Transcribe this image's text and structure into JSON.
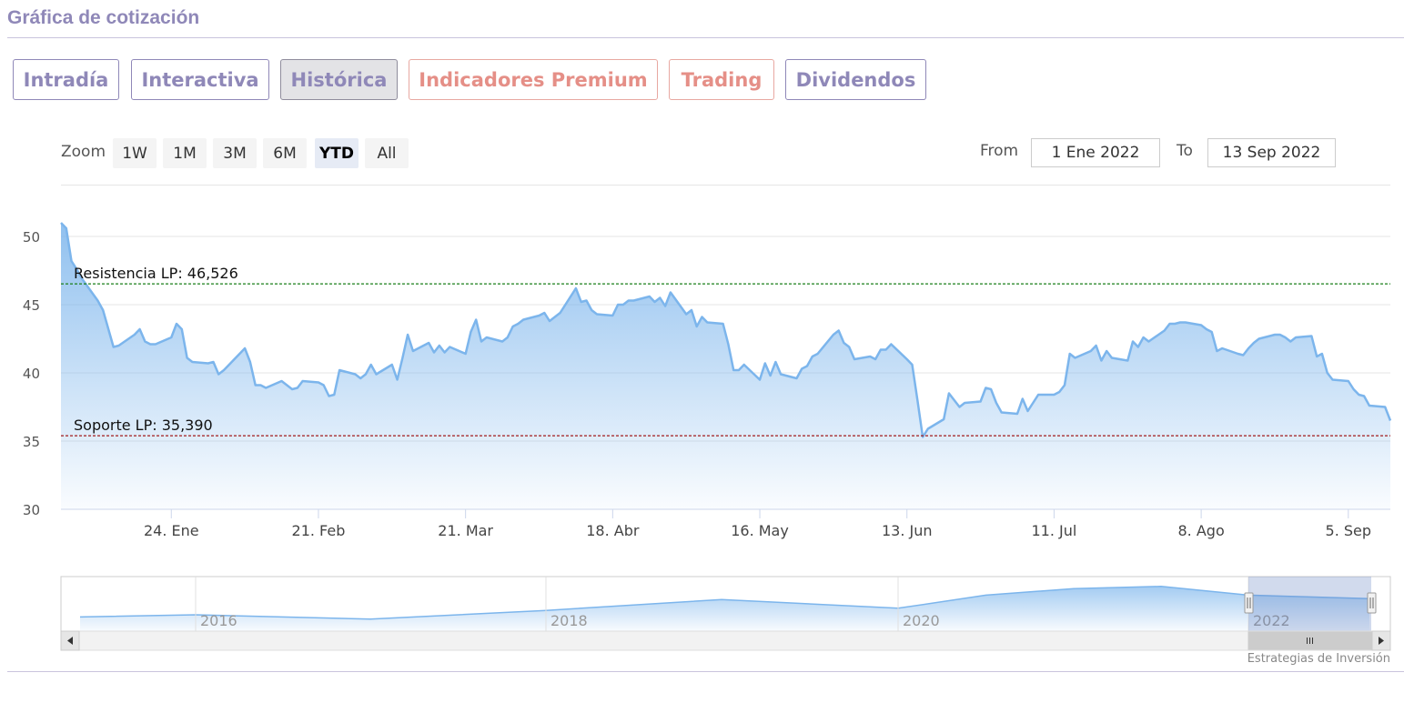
{
  "section": {
    "title": "Gráfica de cotización"
  },
  "tabs": [
    {
      "label": "Intradía",
      "style": "normal"
    },
    {
      "label": "Interactiva",
      "style": "normal"
    },
    {
      "label": "Histórica",
      "style": "active"
    },
    {
      "label": "Indicadores Premium",
      "style": "premium"
    },
    {
      "label": "Trading",
      "style": "premium"
    },
    {
      "label": "Dividendos",
      "style": "normal"
    }
  ],
  "zoom": {
    "label": "Zoom",
    "buttons": [
      "1W",
      "1M",
      "3M",
      "6M",
      "YTD",
      "All"
    ],
    "selected": "YTD"
  },
  "range": {
    "from_label": "From",
    "from_value": "1 Ene 2022",
    "to_label": "To",
    "to_value": "13 Sep 2022"
  },
  "colors": {
    "accent": "#8f88b8",
    "premium": "#e58f87",
    "series_line": "#7cb5ec",
    "resistance_line": "#1a7f1a",
    "support_line": "#a11b1b"
  },
  "chart_data": {
    "type": "area",
    "ylim": [
      30,
      51
    ],
    "y_ticks": [
      "30",
      "35",
      "40",
      "45",
      "50"
    ],
    "x_ticks": [
      {
        "label": "24. Ene",
        "date": "2022-01-24"
      },
      {
        "label": "21. Feb",
        "date": "2022-02-21"
      },
      {
        "label": "21. Mar",
        "date": "2022-03-21"
      },
      {
        "label": "18. Abr",
        "date": "2022-04-18"
      },
      {
        "label": "16. May",
        "date": "2022-05-16"
      },
      {
        "label": "13. Jun",
        "date": "2022-06-13"
      },
      {
        "label": "11. Jul",
        "date": "2022-07-11"
      },
      {
        "label": "8. Ago",
        "date": "2022-08-08"
      },
      {
        "label": "5. Sep",
        "date": "2022-09-05"
      }
    ],
    "grid": true,
    "series": [
      {
        "points": [
          [
            "2022-01-03",
            51.0
          ],
          [
            "2022-01-04",
            50.6
          ],
          [
            "2022-01-05",
            48.2
          ],
          [
            "2022-01-06",
            47.6
          ],
          [
            "2022-01-07",
            46.9
          ],
          [
            "2022-01-10",
            45.3
          ],
          [
            "2022-01-11",
            44.6
          ],
          [
            "2022-01-13",
            41.9
          ],
          [
            "2022-01-14",
            42.0
          ],
          [
            "2022-01-17",
            42.8
          ],
          [
            "2022-01-18",
            43.2
          ],
          [
            "2022-01-19",
            42.3
          ],
          [
            "2022-01-20",
            42.1
          ],
          [
            "2022-01-21",
            42.1
          ],
          [
            "2022-01-24",
            42.6
          ],
          [
            "2022-01-25",
            43.6
          ],
          [
            "2022-01-26",
            43.2
          ],
          [
            "2022-01-27",
            41.1
          ],
          [
            "2022-01-28",
            40.8
          ],
          [
            "2022-01-31",
            40.7
          ],
          [
            "2022-02-01",
            40.8
          ],
          [
            "2022-02-02",
            39.9
          ],
          [
            "2022-02-03",
            40.2
          ],
          [
            "2022-02-04",
            40.6
          ],
          [
            "2022-02-07",
            41.8
          ],
          [
            "2022-02-08",
            40.8
          ],
          [
            "2022-02-09",
            39.1
          ],
          [
            "2022-02-10",
            39.1
          ],
          [
            "2022-02-11",
            38.9
          ],
          [
            "2022-02-14",
            39.4
          ],
          [
            "2022-02-15",
            39.1
          ],
          [
            "2022-02-16",
            38.8
          ],
          [
            "2022-02-17",
            38.9
          ],
          [
            "2022-02-18",
            39.4
          ],
          [
            "2022-02-21",
            39.3
          ],
          [
            "2022-02-22",
            39.1
          ],
          [
            "2022-02-23",
            38.3
          ],
          [
            "2022-02-24",
            38.4
          ],
          [
            "2022-02-25",
            40.2
          ],
          [
            "2022-02-28",
            39.9
          ],
          [
            "2022-03-01",
            39.6
          ],
          [
            "2022-03-02",
            39.9
          ],
          [
            "2022-03-03",
            40.6
          ],
          [
            "2022-03-04",
            39.9
          ],
          [
            "2022-03-07",
            40.6
          ],
          [
            "2022-03-08",
            39.5
          ],
          [
            "2022-03-09",
            41.1
          ],
          [
            "2022-03-10",
            42.8
          ],
          [
            "2022-03-11",
            41.6
          ],
          [
            "2022-03-14",
            42.2
          ],
          [
            "2022-03-15",
            41.5
          ],
          [
            "2022-03-16",
            42.0
          ],
          [
            "2022-03-17",
            41.5
          ],
          [
            "2022-03-18",
            41.9
          ],
          [
            "2022-03-21",
            41.4
          ],
          [
            "2022-03-22",
            43.0
          ],
          [
            "2022-03-23",
            43.9
          ],
          [
            "2022-03-24",
            42.3
          ],
          [
            "2022-03-25",
            42.6
          ],
          [
            "2022-03-28",
            42.3
          ],
          [
            "2022-03-29",
            42.6
          ],
          [
            "2022-03-30",
            43.4
          ],
          [
            "2022-03-31",
            43.6
          ],
          [
            "2022-04-01",
            43.9
          ],
          [
            "2022-04-04",
            44.2
          ],
          [
            "2022-04-05",
            44.4
          ],
          [
            "2022-04-06",
            43.8
          ],
          [
            "2022-04-07",
            44.1
          ],
          [
            "2022-04-08",
            44.4
          ],
          [
            "2022-04-11",
            46.2
          ],
          [
            "2022-04-12",
            45.2
          ],
          [
            "2022-04-13",
            45.3
          ],
          [
            "2022-04-14",
            44.6
          ],
          [
            "2022-04-15",
            44.3
          ],
          [
            "2022-04-18",
            44.2
          ],
          [
            "2022-04-19",
            45.0
          ],
          [
            "2022-04-20",
            45.0
          ],
          [
            "2022-04-21",
            45.3
          ],
          [
            "2022-04-22",
            45.3
          ],
          [
            "2022-04-25",
            45.6
          ],
          [
            "2022-04-26",
            45.2
          ],
          [
            "2022-04-27",
            45.5
          ],
          [
            "2022-04-28",
            44.9
          ],
          [
            "2022-04-29",
            45.9
          ],
          [
            "2022-05-02",
            44.3
          ],
          [
            "2022-05-03",
            44.6
          ],
          [
            "2022-05-04",
            43.4
          ],
          [
            "2022-05-05",
            44.1
          ],
          [
            "2022-05-06",
            43.7
          ],
          [
            "2022-05-09",
            43.6
          ],
          [
            "2022-05-10",
            42.1
          ],
          [
            "2022-05-11",
            40.2
          ],
          [
            "2022-05-12",
            40.2
          ],
          [
            "2022-05-13",
            40.6
          ],
          [
            "2022-05-16",
            39.5
          ],
          [
            "2022-05-17",
            40.7
          ],
          [
            "2022-05-18",
            39.8
          ],
          [
            "2022-05-19",
            40.8
          ],
          [
            "2022-05-20",
            39.9
          ],
          [
            "2022-05-23",
            39.6
          ],
          [
            "2022-05-24",
            40.3
          ],
          [
            "2022-05-25",
            40.5
          ],
          [
            "2022-05-26",
            41.2
          ],
          [
            "2022-05-27",
            41.4
          ],
          [
            "2022-05-30",
            42.8
          ],
          [
            "2022-05-31",
            43.1
          ],
          [
            "2022-06-01",
            42.2
          ],
          [
            "2022-06-02",
            41.9
          ],
          [
            "2022-06-03",
            41.0
          ],
          [
            "2022-06-06",
            41.2
          ],
          [
            "2022-06-07",
            41.0
          ],
          [
            "2022-06-08",
            41.7
          ],
          [
            "2022-06-09",
            41.7
          ],
          [
            "2022-06-10",
            42.1
          ],
          [
            "2022-06-13",
            41.0
          ],
          [
            "2022-06-14",
            40.6
          ],
          [
            "2022-06-15",
            38.0
          ],
          [
            "2022-06-16",
            35.3
          ],
          [
            "2022-06-17",
            35.9
          ],
          [
            "2022-06-20",
            36.6
          ],
          [
            "2022-06-21",
            38.5
          ],
          [
            "2022-06-22",
            38.0
          ],
          [
            "2022-06-23",
            37.5
          ],
          [
            "2022-06-24",
            37.8
          ],
          [
            "2022-06-27",
            37.9
          ],
          [
            "2022-06-28",
            38.9
          ],
          [
            "2022-06-29",
            38.8
          ],
          [
            "2022-06-30",
            37.8
          ],
          [
            "2022-07-01",
            37.1
          ],
          [
            "2022-07-04",
            37.0
          ],
          [
            "2022-07-05",
            38.1
          ],
          [
            "2022-07-06",
            37.2
          ],
          [
            "2022-07-07",
            37.8
          ],
          [
            "2022-07-08",
            38.4
          ],
          [
            "2022-07-11",
            38.4
          ],
          [
            "2022-07-12",
            38.6
          ],
          [
            "2022-07-13",
            39.1
          ],
          [
            "2022-07-14",
            41.4
          ],
          [
            "2022-07-15",
            41.1
          ],
          [
            "2022-07-18",
            41.6
          ],
          [
            "2022-07-19",
            42.0
          ],
          [
            "2022-07-20",
            40.9
          ],
          [
            "2022-07-21",
            41.6
          ],
          [
            "2022-07-22",
            41.1
          ],
          [
            "2022-07-25",
            40.9
          ],
          [
            "2022-07-26",
            42.3
          ],
          [
            "2022-07-27",
            41.9
          ],
          [
            "2022-07-28",
            42.6
          ],
          [
            "2022-07-29",
            42.3
          ],
          [
            "2022-08-01",
            43.1
          ],
          [
            "2022-08-02",
            43.6
          ],
          [
            "2022-08-03",
            43.6
          ],
          [
            "2022-08-04",
            43.7
          ],
          [
            "2022-08-05",
            43.7
          ],
          [
            "2022-08-08",
            43.5
          ],
          [
            "2022-08-09",
            43.2
          ],
          [
            "2022-08-10",
            43.0
          ],
          [
            "2022-08-11",
            41.6
          ],
          [
            "2022-08-12",
            41.8
          ],
          [
            "2022-08-15",
            41.4
          ],
          [
            "2022-08-16",
            41.3
          ],
          [
            "2022-08-17",
            41.8
          ],
          [
            "2022-08-18",
            42.2
          ],
          [
            "2022-08-19",
            42.5
          ],
          [
            "2022-08-22",
            42.8
          ],
          [
            "2022-08-23",
            42.8
          ],
          [
            "2022-08-24",
            42.6
          ],
          [
            "2022-08-25",
            42.3
          ],
          [
            "2022-08-26",
            42.6
          ],
          [
            "2022-08-29",
            42.7
          ],
          [
            "2022-08-30",
            41.2
          ],
          [
            "2022-08-31",
            41.4
          ],
          [
            "2022-09-01",
            40.0
          ],
          [
            "2022-09-02",
            39.5
          ],
          [
            "2022-09-05",
            39.4
          ],
          [
            "2022-09-06",
            38.8
          ],
          [
            "2022-09-07",
            38.4
          ],
          [
            "2022-09-08",
            38.3
          ],
          [
            "2022-09-09",
            37.6
          ],
          [
            "2022-09-12",
            37.5
          ],
          [
            "2022-09-13",
            36.5
          ]
        ]
      }
    ],
    "plot_lines": [
      {
        "label": "Resistencia LP: 46,526",
        "value": 46.526,
        "dash": true
      },
      {
        "label": "Soporte LP: 35,390",
        "value": 35.39,
        "dash": true
      }
    ]
  },
  "navigator": {
    "years": [
      "2016",
      "2018",
      "2020",
      "2022"
    ],
    "profile": [
      [
        "2015",
        0.2
      ],
      [
        "2016",
        0.25
      ],
      [
        "2017",
        0.15
      ],
      [
        "2018",
        0.35
      ],
      [
        "2019",
        0.6
      ],
      [
        "2020",
        0.4
      ],
      [
        "2020.5",
        0.7
      ],
      [
        "2021",
        0.85
      ],
      [
        "2021.5",
        0.9
      ],
      [
        "2022",
        0.7
      ],
      [
        "2022.7",
        0.62
      ]
    ],
    "selection_start": "2022"
  },
  "credits": "Estrategias de Inversión"
}
